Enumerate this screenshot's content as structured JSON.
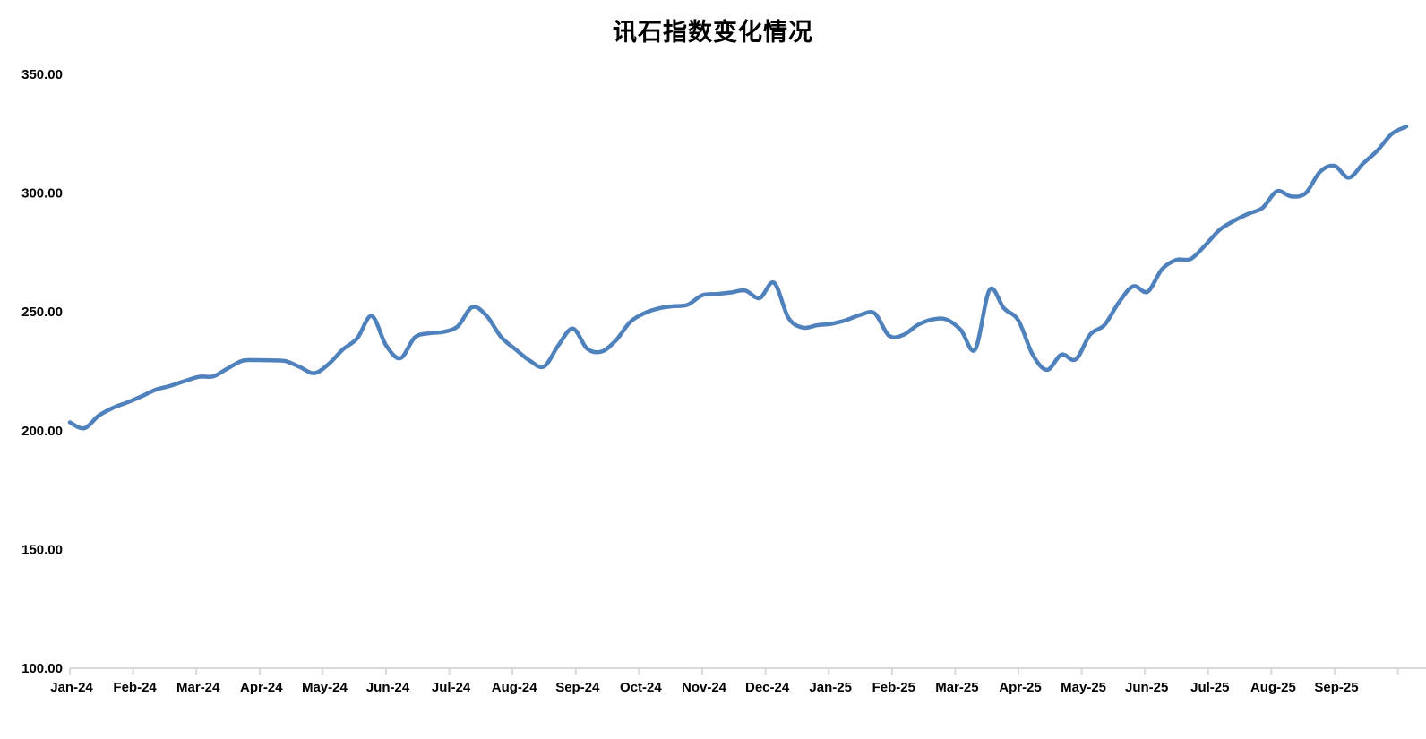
{
  "chart_data": {
    "type": "line",
    "title": "讯石指数变化情况",
    "legend": "none",
    "grid": "off",
    "x_axis": {
      "tick_labels": [
        "Jan-24",
        "Feb-24",
        "Mar-24",
        "Apr-24",
        "May-24",
        "Jun-24",
        "Jul-24",
        "Aug-24",
        "Sep-24",
        "Oct-24",
        "Nov-24",
        "Dec-24",
        "Jan-25",
        "Feb-25",
        "Mar-25",
        "Apr-25",
        "May-25",
        "Jun-25",
        "Jul-25",
        "Aug-25",
        "Sep-25"
      ],
      "label_interval": "monthly",
      "data_sampling": "weekly"
    },
    "y_axis": {
      "tick_labels": [
        "350.00",
        "300.00",
        "250.00",
        "200.00",
        "150.00",
        "100.00"
      ],
      "min": 100,
      "max": 350,
      "tick_step": 50
    },
    "values": [
      203.5,
      201.0,
      206.3,
      209.6,
      211.9,
      214.5,
      217.3,
      218.9,
      220.9,
      222.7,
      222.9,
      226.3,
      229.4,
      229.7,
      229.6,
      229.3,
      226.8,
      224.2,
      228.0,
      234.2,
      238.9,
      248.3,
      236.0,
      230.5,
      239.2,
      241.0,
      241.6,
      244.0,
      252.0,
      248.4,
      239.5,
      234.3,
      229.5,
      227.0,
      236.0,
      243.0,
      234.5,
      233.3,
      238.0,
      245.8,
      249.5,
      251.5,
      252.4,
      253.0,
      257.0,
      257.5,
      258.2,
      259.0,
      255.8,
      262.3,
      247.5,
      243.4,
      244.4,
      245.0,
      246.5,
      248.7,
      249.4,
      240.0,
      240.3,
      244.5,
      246.8,
      246.8,
      242.4,
      234.2,
      259.3,
      251.5,
      246.5,
      232.0,
      225.6,
      232.0,
      230.0,
      240.5,
      244.5,
      254.0,
      260.8,
      258.5,
      268.0,
      271.9,
      272.3,
      278.0,
      284.5,
      288.3,
      291.3,
      293.8,
      300.8,
      298.6,
      300.0,
      309.0,
      311.5,
      306.5,
      312.5,
      318.0,
      325.0,
      328.0
    ],
    "colors": {
      "line": "#4F81BD",
      "axis": "#D9D9D9",
      "text": "#000000",
      "background": "#FFFFFF"
    }
  }
}
